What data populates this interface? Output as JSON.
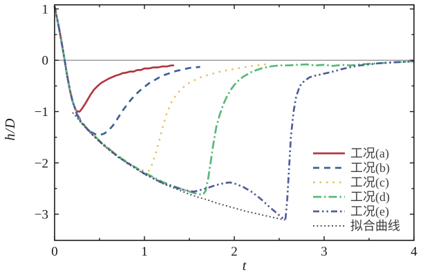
{
  "chart_data": {
    "type": "line",
    "title": "",
    "xlabel": "t",
    "ylabel": "h/D",
    "xlim": [
      0,
      4
    ],
    "ylim": [
      -3.51,
      1.08
    ],
    "grid": false,
    "zero_line": {
      "y": 0,
      "color": "#8a8a8a"
    },
    "frame_color": "#1a1a1a",
    "xticks": {
      "major": [
        0,
        1,
        2,
        3,
        4
      ],
      "minor": [
        0.5,
        1.5,
        2.5,
        3.5
      ],
      "labels": [
        "0",
        "1",
        "2",
        "3",
        "4"
      ]
    },
    "yticks": {
      "major": [
        1,
        0,
        -1,
        -2,
        -3
      ],
      "minor": [
        0.5,
        -0.5,
        -1.5,
        -2.5
      ],
      "labels": [
        "1",
        "0",
        "−1",
        "−2",
        "−3"
      ]
    },
    "legend": {
      "position": "lower right",
      "border": false
    },
    "series": [
      {
        "name": "工况(a)",
        "color": "#b23642",
        "dash": "solid",
        "width": 2.7,
        "linecap": "butt",
        "points": [
          [
            0,
            1.05
          ],
          [
            0.02,
            0.88
          ],
          [
            0.05,
            0.62
          ],
          [
            0.08,
            0.33
          ],
          [
            0.11,
            0.02
          ],
          [
            0.14,
            -0.3
          ],
          [
            0.17,
            -0.58
          ],
          [
            0.2,
            -0.8
          ],
          [
            0.23,
            -0.95
          ],
          [
            0.25,
            -1.0
          ],
          [
            0.28,
            -1.0
          ],
          [
            0.31,
            -0.93
          ],
          [
            0.34,
            -0.85
          ],
          [
            0.37,
            -0.76
          ],
          [
            0.4,
            -0.67
          ],
          [
            0.44,
            -0.57
          ],
          [
            0.48,
            -0.5
          ],
          [
            0.52,
            -0.44
          ],
          [
            0.56,
            -0.4
          ],
          [
            0.6,
            -0.36
          ],
          [
            0.64,
            -0.33
          ],
          [
            0.68,
            -0.3
          ],
          [
            0.72,
            -0.28
          ],
          [
            0.76,
            -0.25
          ],
          [
            0.8,
            -0.24
          ],
          [
            0.84,
            -0.22
          ],
          [
            0.88,
            -0.22
          ],
          [
            0.92,
            -0.19
          ],
          [
            0.96,
            -0.19
          ],
          [
            1.0,
            -0.16
          ],
          [
            1.05,
            -0.16
          ],
          [
            1.1,
            -0.14
          ],
          [
            1.15,
            -0.14
          ],
          [
            1.2,
            -0.12
          ],
          [
            1.25,
            -0.12
          ],
          [
            1.3,
            -0.1
          ],
          [
            1.33,
            -0.1
          ]
        ]
      },
      {
        "name": "工况(b)",
        "color": "#3e5f96",
        "dash": "9 7",
        "width": 2.7,
        "linecap": "butt",
        "points": [
          [
            0,
            1.05
          ],
          [
            0.02,
            0.88
          ],
          [
            0.05,
            0.62
          ],
          [
            0.08,
            0.33
          ],
          [
            0.11,
            0.02
          ],
          [
            0.14,
            -0.3
          ],
          [
            0.17,
            -0.58
          ],
          [
            0.2,
            -0.8
          ],
          [
            0.23,
            -0.95
          ],
          [
            0.25,
            -1.05
          ],
          [
            0.3,
            -1.2
          ],
          [
            0.35,
            -1.31
          ],
          [
            0.4,
            -1.39
          ],
          [
            0.45,
            -1.44
          ],
          [
            0.5,
            -1.46
          ],
          [
            0.55,
            -1.43
          ],
          [
            0.6,
            -1.37
          ],
          [
            0.65,
            -1.27
          ],
          [
            0.7,
            -1.14
          ],
          [
            0.75,
            -1.0
          ],
          [
            0.8,
            -0.88
          ],
          [
            0.85,
            -0.77
          ],
          [
            0.9,
            -0.67
          ],
          [
            0.95,
            -0.59
          ],
          [
            1.0,
            -0.52
          ],
          [
            1.05,
            -0.45
          ],
          [
            1.1,
            -0.4
          ],
          [
            1.15,
            -0.35
          ],
          [
            1.2,
            -0.3
          ],
          [
            1.25,
            -0.27
          ],
          [
            1.3,
            -0.24
          ],
          [
            1.35,
            -0.21
          ],
          [
            1.4,
            -0.19
          ],
          [
            1.5,
            -0.15
          ],
          [
            1.55,
            -0.14
          ],
          [
            1.62,
            -0.13
          ]
        ]
      },
      {
        "name": "工况(c)",
        "color": "#e6b95e",
        "dash": "2.5 7",
        "width": 2.4,
        "linecap": "butt",
        "points": [
          [
            0,
            1.05
          ],
          [
            0.02,
            0.88
          ],
          [
            0.05,
            0.62
          ],
          [
            0.08,
            0.33
          ],
          [
            0.11,
            0.02
          ],
          [
            0.14,
            -0.3
          ],
          [
            0.17,
            -0.58
          ],
          [
            0.2,
            -0.8
          ],
          [
            0.23,
            -0.95
          ],
          [
            0.25,
            -1.07
          ],
          [
            0.3,
            -1.21
          ],
          [
            0.35,
            -1.3
          ],
          [
            0.4,
            -1.39
          ],
          [
            0.45,
            -1.48
          ],
          [
            0.5,
            -1.56
          ],
          [
            0.6,
            -1.71
          ],
          [
            0.7,
            -1.85
          ],
          [
            0.8,
            -1.97
          ],
          [
            0.9,
            -2.08
          ],
          [
            0.95,
            -2.12
          ],
          [
            1.0,
            -2.16
          ],
          [
            1.05,
            -2.15
          ],
          [
            1.08,
            -2.05
          ],
          [
            1.12,
            -1.85
          ],
          [
            1.16,
            -1.6
          ],
          [
            1.2,
            -1.33
          ],
          [
            1.25,
            -1.02
          ],
          [
            1.3,
            -0.82
          ],
          [
            1.35,
            -0.68
          ],
          [
            1.4,
            -0.58
          ],
          [
            1.45,
            -0.5
          ],
          [
            1.5,
            -0.44
          ],
          [
            1.6,
            -0.35
          ],
          [
            1.7,
            -0.29
          ],
          [
            1.8,
            -0.24
          ],
          [
            1.9,
            -0.2
          ],
          [
            2.0,
            -0.17
          ],
          [
            2.1,
            -0.14
          ],
          [
            2.2,
            -0.11
          ],
          [
            2.3,
            -0.09
          ],
          [
            2.4,
            -0.07
          ]
        ]
      },
      {
        "name": "工况(d)",
        "color": "#57b877",
        "dash": "12 4 2.5 4",
        "width": 2.7,
        "linecap": "butt",
        "points": [
          [
            0,
            1.05
          ],
          [
            0.02,
            0.88
          ],
          [
            0.05,
            0.62
          ],
          [
            0.08,
            0.33
          ],
          [
            0.11,
            0.02
          ],
          [
            0.14,
            -0.3
          ],
          [
            0.17,
            -0.58
          ],
          [
            0.2,
            -0.8
          ],
          [
            0.23,
            -0.95
          ],
          [
            0.25,
            -1.07
          ],
          [
            0.3,
            -1.22
          ],
          [
            0.4,
            -1.4
          ],
          [
            0.5,
            -1.57
          ],
          [
            0.6,
            -1.72
          ],
          [
            0.7,
            -1.86
          ],
          [
            0.8,
            -1.98
          ],
          [
            0.9,
            -2.09
          ],
          [
            1.0,
            -2.19
          ],
          [
            1.1,
            -2.28
          ],
          [
            1.2,
            -2.37
          ],
          [
            1.3,
            -2.44
          ],
          [
            1.4,
            -2.5
          ],
          [
            1.5,
            -2.56
          ],
          [
            1.6,
            -2.61
          ],
          [
            1.65,
            -2.62
          ],
          [
            1.68,
            -2.55
          ],
          [
            1.71,
            -2.3
          ],
          [
            1.74,
            -1.95
          ],
          [
            1.77,
            -1.6
          ],
          [
            1.8,
            -1.3
          ],
          [
            1.84,
            -1.05
          ],
          [
            1.88,
            -0.85
          ],
          [
            1.92,
            -0.7
          ],
          [
            1.96,
            -0.58
          ],
          [
            2.0,
            -0.48
          ],
          [
            2.05,
            -0.39
          ],
          [
            2.1,
            -0.32
          ],
          [
            2.15,
            -0.27
          ],
          [
            2.2,
            -0.22
          ],
          [
            2.3,
            -0.16
          ],
          [
            2.4,
            -0.12
          ],
          [
            2.5,
            -0.1
          ],
          [
            2.6,
            -0.1
          ],
          [
            2.7,
            -0.09
          ],
          [
            2.8,
            -0.08
          ],
          [
            2.9,
            -0.1
          ],
          [
            3.0,
            -0.09
          ],
          [
            3.1,
            -0.11
          ],
          [
            3.2,
            -0.09
          ],
          [
            3.3,
            -0.1
          ],
          [
            3.4,
            -0.08
          ],
          [
            3.5,
            -0.07
          ],
          [
            3.6,
            -0.06
          ],
          [
            3.7,
            -0.05
          ],
          [
            3.8,
            -0.04
          ],
          [
            3.9,
            -0.03
          ],
          [
            4.0,
            -0.02
          ]
        ]
      },
      {
        "name": "工况(e)",
        "color": "#515c99",
        "dash": "9 4 2.5 4 2.5 4",
        "width": 2.7,
        "linecap": "butt",
        "points": [
          [
            0,
            1.05
          ],
          [
            0.02,
            0.88
          ],
          [
            0.05,
            0.62
          ],
          [
            0.08,
            0.33
          ],
          [
            0.11,
            0.02
          ],
          [
            0.14,
            -0.3
          ],
          [
            0.17,
            -0.58
          ],
          [
            0.2,
            -0.8
          ],
          [
            0.23,
            -0.95
          ],
          [
            0.25,
            -1.07
          ],
          [
            0.3,
            -1.22
          ],
          [
            0.4,
            -1.41
          ],
          [
            0.5,
            -1.58
          ],
          [
            0.6,
            -1.73
          ],
          [
            0.7,
            -1.87
          ],
          [
            0.8,
            -1.99
          ],
          [
            0.9,
            -2.1
          ],
          [
            1.0,
            -2.21
          ],
          [
            1.1,
            -2.3
          ],
          [
            1.2,
            -2.39
          ],
          [
            1.3,
            -2.45
          ],
          [
            1.4,
            -2.51
          ],
          [
            1.5,
            -2.55
          ],
          [
            1.55,
            -2.56
          ],
          [
            1.6,
            -2.54
          ],
          [
            1.7,
            -2.49
          ],
          [
            1.8,
            -2.43
          ],
          [
            1.9,
            -2.39
          ],
          [
            1.95,
            -2.38
          ],
          [
            2.0,
            -2.4
          ],
          [
            2.1,
            -2.47
          ],
          [
            2.2,
            -2.57
          ],
          [
            2.3,
            -2.71
          ],
          [
            2.4,
            -2.87
          ],
          [
            2.5,
            -3.02
          ],
          [
            2.55,
            -3.09
          ],
          [
            2.57,
            -3.1
          ],
          [
            2.59,
            -2.7
          ],
          [
            2.61,
            -2.1
          ],
          [
            2.63,
            -1.5
          ],
          [
            2.66,
            -1.0
          ],
          [
            2.69,
            -0.7
          ],
          [
            2.73,
            -0.5
          ],
          [
            2.78,
            -0.4
          ],
          [
            2.84,
            -0.33
          ],
          [
            2.9,
            -0.3
          ],
          [
            3.0,
            -0.26
          ],
          [
            3.1,
            -0.22
          ],
          [
            3.2,
            -0.17
          ],
          [
            3.3,
            -0.13
          ],
          [
            3.4,
            -0.1
          ],
          [
            3.5,
            -0.08
          ],
          [
            3.6,
            -0.06
          ],
          [
            3.75,
            -0.04
          ],
          [
            3.9,
            -0.03
          ],
          [
            4.0,
            -0.02
          ]
        ]
      },
      {
        "name": "拟合曲线",
        "color": "#50505a",
        "dash": "2 3.4",
        "width": 2.0,
        "linecap": "butt",
        "points": [
          [
            0.2,
            -1.02
          ],
          [
            0.25,
            -1.12
          ],
          [
            0.3,
            -1.23
          ],
          [
            0.4,
            -1.42
          ],
          [
            0.5,
            -1.59
          ],
          [
            0.6,
            -1.74
          ],
          [
            0.7,
            -1.88
          ],
          [
            0.8,
            -2.0
          ],
          [
            0.9,
            -2.11
          ],
          [
            1.0,
            -2.22
          ],
          [
            1.1,
            -2.31
          ],
          [
            1.2,
            -2.4
          ],
          [
            1.3,
            -2.47
          ],
          [
            1.4,
            -2.54
          ],
          [
            1.5,
            -2.61
          ],
          [
            1.6,
            -2.67
          ],
          [
            1.7,
            -2.72
          ],
          [
            1.8,
            -2.78
          ],
          [
            1.9,
            -2.83
          ],
          [
            2.0,
            -2.88
          ],
          [
            2.1,
            -2.93
          ],
          [
            2.2,
            -2.97
          ],
          [
            2.3,
            -3.01
          ],
          [
            2.4,
            -3.05
          ],
          [
            2.5,
            -3.09
          ],
          [
            2.57,
            -3.11
          ]
        ]
      }
    ]
  }
}
